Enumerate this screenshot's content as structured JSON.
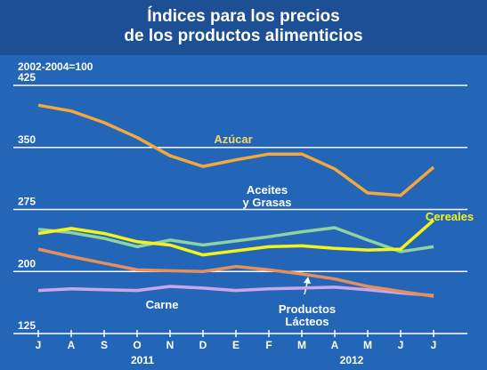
{
  "chart_data": {
    "type": "line",
    "title": "Índices para los precios\nde los productos alimenticios",
    "subtitle": "2002-2004=100",
    "categories": [
      "J",
      "A",
      "S",
      "O",
      "N",
      "D",
      "E",
      "F",
      "M",
      "A",
      "M",
      "J",
      "J"
    ],
    "annotations": [
      "2011",
      "2012"
    ],
    "ylim": [
      125,
      425
    ],
    "yticks": [
      125,
      200,
      275,
      350,
      425
    ],
    "grid": true,
    "series": [
      {
        "name": "Azúcar",
        "color": "#f5a83a",
        "values": [
          401,
          394,
          380,
          362,
          340,
          327,
          335,
          342,
          342,
          324,
          295,
          292,
          326
        ]
      },
      {
        "name": "Aceites\ny Grasas",
        "color": "#8fd3a0",
        "values": [
          251,
          247,
          240,
          230,
          238,
          232,
          237,
          242,
          248,
          253,
          238,
          224,
          230
        ]
      },
      {
        "name": "Cereales",
        "color": "#f4f41a",
        "values": [
          246,
          252,
          246,
          236,
          232,
          220,
          225,
          230,
          231,
          228,
          226,
          227,
          262
        ]
      },
      {
        "name": "Carne",
        "color": "#c9a6e6",
        "values": [
          177,
          179,
          178,
          177,
          182,
          180,
          177,
          179,
          180,
          181,
          178,
          174,
          171
        ]
      },
      {
        "name": "Productos\nLácteos",
        "color": "#e58f5c",
        "values": [
          227,
          218,
          210,
          202,
          201,
          200,
          206,
          202,
          197,
          191,
          182,
          176,
          170
        ]
      }
    ]
  }
}
